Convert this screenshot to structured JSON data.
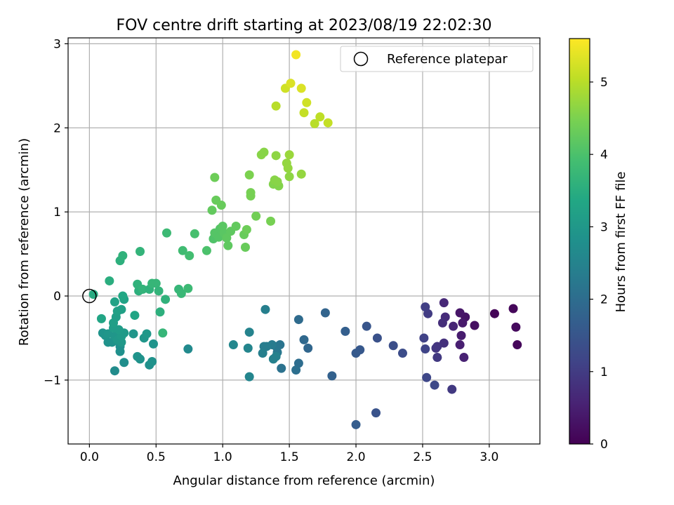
{
  "chart_data": {
    "type": "scatter",
    "title": "FOV centre drift starting at 2023/08/19 22:02:30",
    "xlabel": "Angular distance from reference (arcmin)",
    "ylabel": "Rotation from reference (arcmin)",
    "xlim": [
      -0.16,
      3.38
    ],
    "ylim": [
      -1.76,
      3.07
    ],
    "xticks": [
      0.0,
      0.5,
      1.0,
      1.5,
      2.0,
      2.5,
      3.0
    ],
    "xtick_labels": [
      "0.0",
      "0.5",
      "1.0",
      "1.5",
      "2.0",
      "2.5",
      "3.0"
    ],
    "yticks": [
      -1,
      0,
      1,
      2,
      3
    ],
    "ytick_labels": [
      "−1",
      "0",
      "1",
      "2",
      "3"
    ],
    "grid": true,
    "colormap": "viridis",
    "colorbar": {
      "label": "Hours from first FF file",
      "range": [
        0,
        5.6
      ],
      "ticks": [
        0,
        1,
        2,
        3,
        4,
        5
      ],
      "tick_labels": [
        "0",
        "1",
        "2",
        "3",
        "4",
        "5"
      ]
    },
    "legend": {
      "position": "top-right",
      "entries": [
        {
          "label": "Reference platepar",
          "marker": "open-circle"
        }
      ]
    },
    "reference_point": {
      "x": 0.0,
      "y": 0.0
    },
    "points": [
      {
        "x": 3.04,
        "y": -0.21,
        "h": 0.05
      },
      {
        "x": 3.18,
        "y": -0.15,
        "h": 0.1
      },
      {
        "x": 3.2,
        "y": -0.37,
        "h": 0.15
      },
      {
        "x": 3.21,
        "y": -0.58,
        "h": 0.1
      },
      {
        "x": 2.89,
        "y": -0.35,
        "h": 0.25
      },
      {
        "x": 2.82,
        "y": -0.25,
        "h": 0.3
      },
      {
        "x": 2.78,
        "y": -0.2,
        "h": 0.35
      },
      {
        "x": 2.8,
        "y": -0.32,
        "h": 0.4
      },
      {
        "x": 2.79,
        "y": -0.47,
        "h": 0.45
      },
      {
        "x": 2.78,
        "y": -0.58,
        "h": 0.5
      },
      {
        "x": 2.81,
        "y": -0.73,
        "h": 0.55
      },
      {
        "x": 2.73,
        "y": -0.36,
        "h": 0.6
      },
      {
        "x": 2.66,
        "y": -0.08,
        "h": 0.65
      },
      {
        "x": 2.67,
        "y": -0.25,
        "h": 0.7
      },
      {
        "x": 2.65,
        "y": -0.32,
        "h": 0.75
      },
      {
        "x": 2.66,
        "y": -0.56,
        "h": 0.8
      },
      {
        "x": 2.61,
        "y": -0.6,
        "h": 0.85
      },
      {
        "x": 2.6,
        "y": -0.62,
        "h": 0.9
      },
      {
        "x": 2.61,
        "y": -0.73,
        "h": 0.95
      },
      {
        "x": 2.72,
        "y": -1.11,
        "h": 0.95
      },
      {
        "x": 2.54,
        "y": -0.21,
        "h": 1.0
      },
      {
        "x": 2.52,
        "y": -0.13,
        "h": 1.05
      },
      {
        "x": 2.51,
        "y": -0.5,
        "h": 1.1
      },
      {
        "x": 2.52,
        "y": -0.63,
        "h": 1.15
      },
      {
        "x": 2.53,
        "y": -0.97,
        "h": 1.2
      },
      {
        "x": 2.59,
        "y": -1.06,
        "h": 1.25
      },
      {
        "x": 2.35,
        "y": -0.68,
        "h": 1.3
      },
      {
        "x": 2.28,
        "y": -0.59,
        "h": 1.35
      },
      {
        "x": 2.16,
        "y": -0.5,
        "h": 1.4
      },
      {
        "x": 2.15,
        "y": -1.39,
        "h": 1.45
      },
      {
        "x": 2.08,
        "y": -0.36,
        "h": 1.5
      },
      {
        "x": 2.03,
        "y": -0.64,
        "h": 1.55
      },
      {
        "x": 2.0,
        "y": -0.68,
        "h": 1.6
      },
      {
        "x": 2.0,
        "y": -1.53,
        "h": 1.65
      },
      {
        "x": 1.92,
        "y": -0.42,
        "h": 1.7
      },
      {
        "x": 1.82,
        "y": -0.95,
        "h": 1.75
      },
      {
        "x": 1.77,
        "y": -0.2,
        "h": 1.8
      },
      {
        "x": 1.64,
        "y": -0.62,
        "h": 1.85
      },
      {
        "x": 1.61,
        "y": -0.52,
        "h": 1.9
      },
      {
        "x": 1.57,
        "y": -0.28,
        "h": 1.95
      },
      {
        "x": 1.57,
        "y": -0.8,
        "h": 2.0
      },
      {
        "x": 1.55,
        "y": -0.88,
        "h": 2.05
      },
      {
        "x": 1.44,
        "y": -0.86,
        "h": 2.1
      },
      {
        "x": 1.43,
        "y": -0.58,
        "h": 2.15
      },
      {
        "x": 1.4,
        "y": -0.6,
        "h": 2.2
      },
      {
        "x": 1.41,
        "y": -0.67,
        "h": 2.25
      },
      {
        "x": 1.37,
        "y": -0.58,
        "h": 2.3
      },
      {
        "x": 1.33,
        "y": -0.6,
        "h": 2.35
      },
      {
        "x": 1.31,
        "y": -0.6,
        "h": 2.35
      },
      {
        "x": 1.32,
        "y": -0.16,
        "h": 2.4
      },
      {
        "x": 1.3,
        "y": -0.68,
        "h": 2.4
      },
      {
        "x": 1.38,
        "y": -0.75,
        "h": 2.45
      },
      {
        "x": 1.4,
        "y": -0.72,
        "h": 2.45
      },
      {
        "x": 1.2,
        "y": -0.43,
        "h": 2.5
      },
      {
        "x": 1.19,
        "y": -0.62,
        "h": 2.55
      },
      {
        "x": 1.2,
        "y": -0.96,
        "h": 2.55
      },
      {
        "x": 1.08,
        "y": -0.58,
        "h": 2.6
      },
      {
        "x": 0.74,
        "y": -0.63,
        "h": 2.65
      },
      {
        "x": 0.19,
        "y": -0.89,
        "h": 2.7
      },
      {
        "x": 0.26,
        "y": -0.79,
        "h": 2.75
      },
      {
        "x": 0.23,
        "y": -0.66,
        "h": 2.8
      },
      {
        "x": 0.23,
        "y": -0.6,
        "h": 2.8
      },
      {
        "x": 0.17,
        "y": -0.55,
        "h": 2.85
      },
      {
        "x": 0.14,
        "y": -0.55,
        "h": 2.85
      },
      {
        "x": 0.12,
        "y": -0.47,
        "h": 2.9
      },
      {
        "x": 0.1,
        "y": -0.44,
        "h": 2.9
      },
      {
        "x": 0.14,
        "y": -0.45,
        "h": 2.95
      },
      {
        "x": 0.19,
        "y": -0.48,
        "h": 2.95
      },
      {
        "x": 0.21,
        "y": -0.52,
        "h": 3.0
      },
      {
        "x": 0.24,
        "y": -0.55,
        "h": 3.0
      },
      {
        "x": 0.26,
        "y": -0.44,
        "h": 3.05
      },
      {
        "x": 0.24,
        "y": -0.48,
        "h": 3.05
      },
      {
        "x": 0.22,
        "y": -0.4,
        "h": 3.1
      },
      {
        "x": 0.18,
        "y": -0.38,
        "h": 3.1
      },
      {
        "x": 0.18,
        "y": -0.32,
        "h": 3.15
      },
      {
        "x": 0.2,
        "y": -0.25,
        "h": 3.15
      },
      {
        "x": 0.21,
        "y": -0.18,
        "h": 3.2
      },
      {
        "x": 0.24,
        "y": -0.16,
        "h": 3.2
      },
      {
        "x": 0.19,
        "y": -0.07,
        "h": 3.25
      },
      {
        "x": 0.26,
        "y": -0.04,
        "h": 3.25
      },
      {
        "x": 0.33,
        "y": -0.45,
        "h": 2.95
      },
      {
        "x": 0.36,
        "y": -0.72,
        "h": 2.9
      },
      {
        "x": 0.38,
        "y": -0.75,
        "h": 2.85
      },
      {
        "x": 0.41,
        "y": -0.5,
        "h": 2.95
      },
      {
        "x": 0.43,
        "y": -0.45,
        "h": 3.0
      },
      {
        "x": 0.45,
        "y": -0.82,
        "h": 2.8
      },
      {
        "x": 0.47,
        "y": -0.78,
        "h": 2.85
      },
      {
        "x": 0.48,
        "y": -0.57,
        "h": 2.9
      },
      {
        "x": 0.34,
        "y": -0.23,
        "h": 3.3
      },
      {
        "x": 0.25,
        "y": 0.0,
        "h": 3.35
      },
      {
        "x": 0.09,
        "y": -0.27,
        "h": 3.3
      },
      {
        "x": 0.03,
        "y": 0.02,
        "h": 3.45
      },
      {
        "x": 0.15,
        "y": 0.18,
        "h": 3.5
      },
      {
        "x": 0.23,
        "y": 0.42,
        "h": 3.55
      },
      {
        "x": 0.25,
        "y": 0.48,
        "h": 3.6
      },
      {
        "x": 0.38,
        "y": 0.53,
        "h": 3.65
      },
      {
        "x": 0.37,
        "y": 0.06,
        "h": 3.55
      },
      {
        "x": 0.36,
        "y": 0.14,
        "h": 3.6
      },
      {
        "x": 0.4,
        "y": 0.08,
        "h": 3.65
      },
      {
        "x": 0.45,
        "y": 0.08,
        "h": 3.6
      },
      {
        "x": 0.47,
        "y": 0.15,
        "h": 3.7
      },
      {
        "x": 0.5,
        "y": 0.15,
        "h": 3.7
      },
      {
        "x": 0.52,
        "y": 0.06,
        "h": 3.65
      },
      {
        "x": 0.53,
        "y": -0.19,
        "h": 3.55
      },
      {
        "x": 0.57,
        "y": -0.04,
        "h": 3.6
      },
      {
        "x": 0.55,
        "y": -0.44,
        "h": 3.7
      },
      {
        "x": 0.58,
        "y": 0.75,
        "h": 3.8
      },
      {
        "x": 0.67,
        "y": 0.08,
        "h": 3.7
      },
      {
        "x": 0.69,
        "y": 0.03,
        "h": 3.75
      },
      {
        "x": 0.74,
        "y": 0.09,
        "h": 3.8
      },
      {
        "x": 0.7,
        "y": 0.54,
        "h": 3.85
      },
      {
        "x": 0.75,
        "y": 0.48,
        "h": 3.9
      },
      {
        "x": 0.79,
        "y": 0.74,
        "h": 3.95
      },
      {
        "x": 0.88,
        "y": 0.54,
        "h": 4.0
      },
      {
        "x": 0.93,
        "y": 0.68,
        "h": 4.05
      },
      {
        "x": 0.94,
        "y": 0.75,
        "h": 4.1
      },
      {
        "x": 0.97,
        "y": 0.7,
        "h": 4.1
      },
      {
        "x": 0.98,
        "y": 0.8,
        "h": 4.1
      },
      {
        "x": 1.0,
        "y": 0.83,
        "h": 4.15
      },
      {
        "x": 1.01,
        "y": 0.75,
        "h": 4.15
      },
      {
        "x": 1.03,
        "y": 0.69,
        "h": 4.2
      },
      {
        "x": 1.04,
        "y": 0.6,
        "h": 4.2
      },
      {
        "x": 1.06,
        "y": 0.77,
        "h": 4.2
      },
      {
        "x": 1.1,
        "y": 0.83,
        "h": 4.25
      },
      {
        "x": 0.92,
        "y": 1.02,
        "h": 4.25
      },
      {
        "x": 0.95,
        "y": 1.14,
        "h": 4.3
      },
      {
        "x": 0.99,
        "y": 1.08,
        "h": 4.3
      },
      {
        "x": 0.94,
        "y": 1.41,
        "h": 4.35
      },
      {
        "x": 1.16,
        "y": 0.73,
        "h": 4.3
      },
      {
        "x": 1.18,
        "y": 0.79,
        "h": 4.35
      },
      {
        "x": 1.17,
        "y": 0.58,
        "h": 4.3
      },
      {
        "x": 1.25,
        "y": 0.95,
        "h": 4.4
      },
      {
        "x": 1.21,
        "y": 1.19,
        "h": 4.45
      },
      {
        "x": 1.21,
        "y": 1.23,
        "h": 4.45
      },
      {
        "x": 1.2,
        "y": 1.44,
        "h": 4.5
      },
      {
        "x": 1.36,
        "y": 0.89,
        "h": 4.45
      },
      {
        "x": 1.29,
        "y": 1.68,
        "h": 4.6
      },
      {
        "x": 1.31,
        "y": 1.71,
        "h": 4.6
      },
      {
        "x": 1.38,
        "y": 1.33,
        "h": 4.55
      },
      {
        "x": 1.39,
        "y": 1.38,
        "h": 4.6
      },
      {
        "x": 1.42,
        "y": 1.31,
        "h": 4.55
      },
      {
        "x": 1.41,
        "y": 1.36,
        "h": 4.6
      },
      {
        "x": 1.4,
        "y": 1.67,
        "h": 4.65
      },
      {
        "x": 1.48,
        "y": 1.58,
        "h": 4.7
      },
      {
        "x": 1.49,
        "y": 1.52,
        "h": 4.7
      },
      {
        "x": 1.5,
        "y": 1.42,
        "h": 4.65
      },
      {
        "x": 1.5,
        "y": 1.68,
        "h": 4.75
      },
      {
        "x": 1.59,
        "y": 1.45,
        "h": 4.7
      },
      {
        "x": 1.4,
        "y": 2.26,
        "h": 5.0
      },
      {
        "x": 1.47,
        "y": 2.47,
        "h": 5.2
      },
      {
        "x": 1.51,
        "y": 2.53,
        "h": 5.3
      },
      {
        "x": 1.55,
        "y": 2.87,
        "h": 5.5
      },
      {
        "x": 1.59,
        "y": 2.47,
        "h": 5.3
      },
      {
        "x": 1.61,
        "y": 2.18,
        "h": 5.1
      },
      {
        "x": 1.63,
        "y": 2.3,
        "h": 5.2
      },
      {
        "x": 1.69,
        "y": 2.05,
        "h": 5.0
      },
      {
        "x": 1.73,
        "y": 2.13,
        "h": 5.05
      },
      {
        "x": 1.79,
        "y": 2.06,
        "h": 5.1
      }
    ]
  }
}
